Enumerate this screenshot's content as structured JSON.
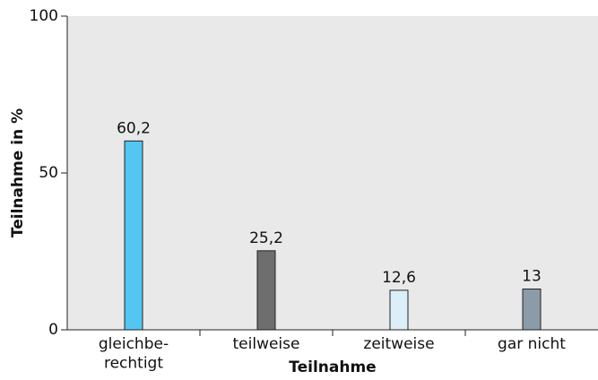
{
  "chart_data": {
    "type": "bar",
    "categories": [
      "gleichbe-\nrechtigt",
      "teilweise",
      "zeitweise",
      "gar nicht"
    ],
    "values": [
      60.2,
      25.2,
      12.6,
      13
    ],
    "value_labels": [
      "60,2",
      "25,2",
      "12,6",
      "13"
    ],
    "colors": [
      "#55c6f2",
      "#6e6e6e",
      "#dceef7",
      "#8c9ba8"
    ],
    "xlabel": "Teilnahme",
    "ylabel": "Teilnahme in %",
    "ylim": [
      0,
      100
    ],
    "yticks": [
      0,
      50,
      100
    ]
  }
}
